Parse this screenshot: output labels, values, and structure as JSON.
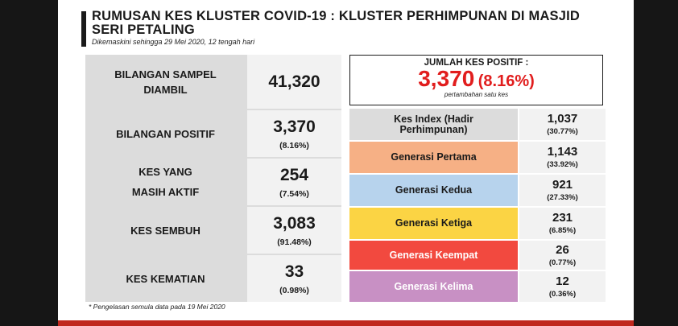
{
  "title": "RUMUSAN KES KLUSTER COVID-19 : KLUSTER PERHIMPUNAN DI MASJID SERI PETALING",
  "subtitle": "Dikemaskini sehingga 29 Mei 2020, 12 tengah hari",
  "left_rows": [
    {
      "label": "BILANGAN SAMPEL DIAMBIL",
      "value": "41,320",
      "pct": ""
    },
    {
      "label": "BILANGAN POSITIF",
      "value": "3,370",
      "pct": "(8.16%)"
    },
    {
      "label": "KES YANG MASIH AKTIF",
      "value": "254",
      "pct": "(7.54%)"
    },
    {
      "label": "KES SEMBUH",
      "value": "3,083",
      "pct": "(91.48%)"
    },
    {
      "label": "KES KEMATIAN",
      "value": "33",
      "pct": "(0.98%)"
    }
  ],
  "footnote": "* Pengelasan semula data pada 19 Mei 2020",
  "total": {
    "label": "JUMLAH KES POSITIF :",
    "value": "3,370",
    "pct": "(8.16%)",
    "note": "pertambahan satu kes"
  },
  "generations": [
    {
      "label": "Kes Index (Hadir Perhimpunan)",
      "value": "1,037",
      "pct": "(30.77%)",
      "color": "#dcdcdc",
      "text_color": "#1a1a1a"
    },
    {
      "label": "Generasi Pertama",
      "value": "1,143",
      "pct": "(33.92%)",
      "color": "#f6b085",
      "text_color": "#1a1a1a"
    },
    {
      "label": "Generasi Kedua",
      "value": "921",
      "pct": "(27.33%)",
      "color": "#b7d3ed",
      "text_color": "#1a1a1a"
    },
    {
      "label": "Generasi Ketiga",
      "value": "231",
      "pct": "(6.85%)",
      "color": "#fbd444",
      "text_color": "#1a1a1a"
    },
    {
      "label": "Generasi Keempat",
      "value": "26",
      "pct": "(0.77%)",
      "color": "#f2493f",
      "text_color": "#ffffff"
    },
    {
      "label": "Generasi Kelima",
      "value": "12",
      "pct": "(0.36%)",
      "color": "#c890c4",
      "text_color": "#ffffff"
    }
  ]
}
